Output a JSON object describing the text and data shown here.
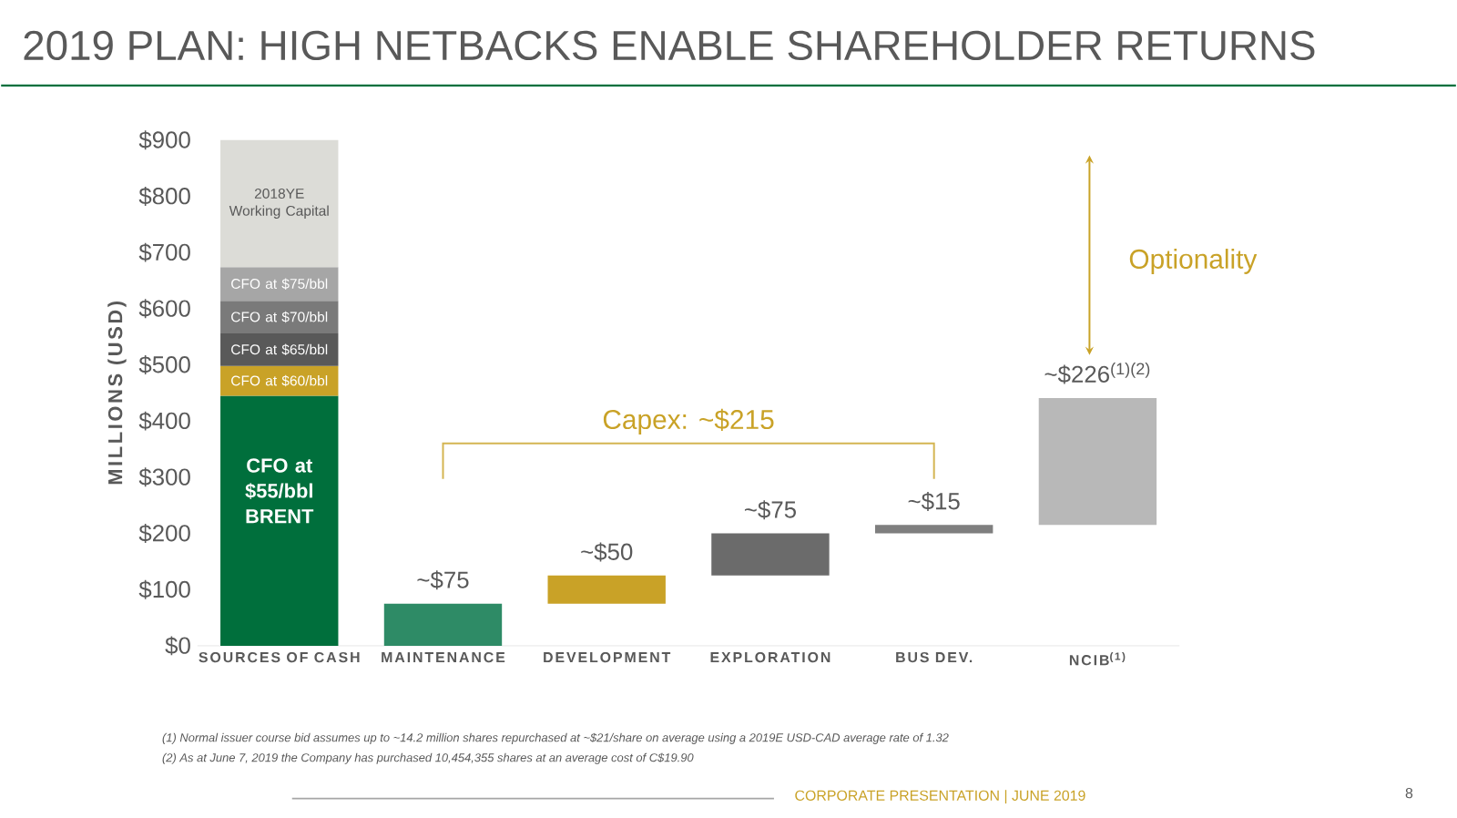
{
  "chart_data": {
    "type": "bar",
    "title": "2019 PLAN: HIGH NETBACKS ENABLE SHAREHOLDER RETURNS",
    "ylabel": "MILLIONS (USD)",
    "categories": [
      "SOURCES OF CASH",
      "MAINTENANCE",
      "DEVELOPMENT",
      "EXPLORATION",
      "BUS DEV.",
      "NCIB$^{(1)}$"
    ],
    "stacked": true,
    "series": [
      {
        "name": "CFO at $55/bbl BRENT",
        "color": "#006f3c",
        "values": [
          445,
          null,
          null,
          null,
          null,
          null
        ]
      },
      {
        "name": "CFO at $60/bbl",
        "color": "#c9a227",
        "values": [
          53,
          null,
          null,
          null,
          null,
          null
        ]
      },
      {
        "name": "CFO at $65/bbl",
        "color": "#595959",
        "values": [
          58,
          null,
          null,
          null,
          null,
          null
        ]
      },
      {
        "name": "CFO at $70/bbl",
        "color": "#7a7a7a",
        "values": [
          58,
          null,
          null,
          null,
          null,
          null
        ]
      },
      {
        "name": "CFO at $75/bbl",
        "color": "#a6a6a6",
        "values": [
          60,
          null,
          null,
          null,
          null,
          null
        ]
      },
      {
        "name": "2018YE Working Capital",
        "color": "#dcdcd7",
        "values": [
          226,
          null,
          null,
          null,
          null,
          null
        ]
      },
      {
        "values": [
          null,
          75,
          50,
          75,
          15,
          226
        ],
        "base": [
          null,
          0,
          75,
          125,
          200,
          215
        ],
        "colors": [
          "#ffffff",
          "#2e8b66",
          "#c9a227",
          "#6b6b6b",
          "#7f7f7f",
          "#b8b8b8"
        ],
        "value_labels": [
          null,
          "~$75",
          "~$50",
          "~$75",
          "~$15",
          "~$226$^{(1)(2)}$"
        ]
      }
    ],
    "ylim": [
      0,
      900
    ],
    "yticks": [
      {
        "value": 0,
        "label": "$0"
      },
      {
        "value": 100,
        "label": "$100"
      },
      {
        "value": 200,
        "label": "$200"
      },
      {
        "value": 300,
        "label": "$300"
      },
      {
        "value": 400,
        "label": "$400"
      },
      {
        "value": 500,
        "label": "$500"
      },
      {
        "value": 600,
        "label": "$600"
      },
      {
        "value": 700,
        "label": "$700"
      },
      {
        "value": 800,
        "label": "$800"
      },
      {
        "value": 900,
        "label": "$900"
      }
    ],
    "grid": false,
    "annotations": [
      "Capex: ~$215",
      "Optionality",
      "(1)   Normal issuer course bid assumes up to ~14.2 million shares repurchased at ~$21/share on average using a 2019E USD-CAD average rate of 1.32",
      "(2)   As at June 7, 2019 the Company has purchased 10,454,355 shares at an average cost of C$19.90",
      "CORPORATE PRESENTATION | JUNE 2019",
      "8"
    ]
  }
}
